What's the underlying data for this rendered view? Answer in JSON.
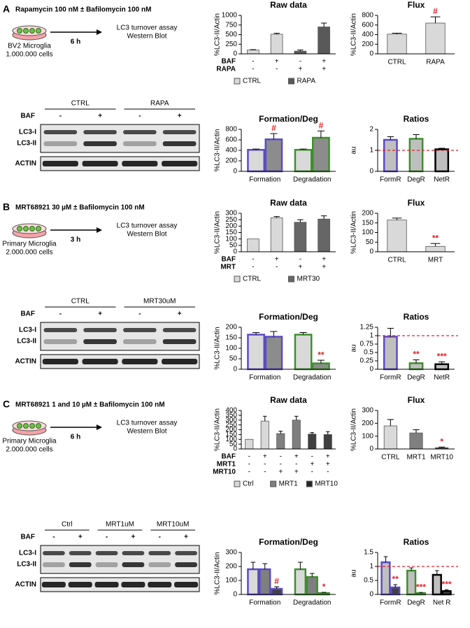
{
  "panels": [
    {
      "letter": "A",
      "title": "Rapamycin 100 nM ± Bafilomycin 100 nM",
      "cells": [
        "BV2 Microglia",
        "1.000.000 cells"
      ],
      "time": "6 h",
      "assay": [
        "LC3 turnover assay",
        "Western Blot"
      ],
      "blot_groups": [
        "CTRL",
        "RAPA"
      ],
      "blot_treatment": "BAF",
      "blot_signs": [
        "-",
        "+",
        "-",
        "+"
      ],
      "blot_rows": [
        "LC3-I",
        "LC3-II",
        "ACTIN"
      ]
    },
    {
      "letter": "B",
      "title": "MRT68921 30 µM ± Bafilomycin 100 nM",
      "cells": [
        "Primary Microglia",
        "2.000.000 cells"
      ],
      "time": "3 h",
      "assay": [
        "LC3 turnover assay",
        "Western Blot"
      ],
      "blot_groups": [
        "CTRL",
        "MRT30uM"
      ],
      "blot_treatment": "BAF",
      "blot_signs": [
        "-",
        "+",
        "-",
        "+"
      ],
      "blot_rows": [
        "LC3-I",
        "LC3-II",
        "ACTIN"
      ]
    },
    {
      "letter": "C",
      "title": "MRT68921 1 and 10 µM  ± Bafilomycin 100 nM",
      "cells": [
        "Primary Microglia",
        "2.000.000 cells"
      ],
      "time": "6 h",
      "assay": [
        "LC3 turnover assay",
        "Western Blot"
      ],
      "blot_groups": [
        "Ctrl",
        "MRT1uM",
        "MRT10uM"
      ],
      "blot_treatment": "BAF",
      "blot_signs": [
        "-",
        "+",
        "-",
        "+",
        "-",
        "+"
      ],
      "blot_rows": [
        "LC3-I",
        "LC3-II",
        "ACTIN"
      ]
    }
  ],
  "chart_data": [
    {
      "type": "bar",
      "title": "Raw data",
      "ylabel": "%LC3-II/Actin",
      "ylim": [
        0,
        1000
      ],
      "yticks": [
        0,
        250,
        500,
        750,
        1000
      ],
      "values": [
        100,
        510,
        70,
        700
      ],
      "errors": [
        10,
        25,
        30,
        100
      ],
      "colors": [
        "#d9d9d9",
        "#d9d9d9",
        "#595959",
        "#595959"
      ],
      "rows": [
        {
          "label": "BAF",
          "signs": [
            "-",
            "+",
            "-",
            "+"
          ]
        },
        {
          "label": "RAPA",
          "signs": [
            "-",
            "-",
            "+",
            "+"
          ]
        }
      ],
      "legend": [
        {
          "name": "CTRL",
          "color": "#d9d9d9"
        },
        {
          "name": "RAPA",
          "color": "#595959"
        }
      ]
    },
    {
      "type": "bar",
      "title": "Flux",
      "ylabel": "%LC3-II/Actin",
      "ylim": [
        0,
        800
      ],
      "yticks": [
        0,
        200,
        400,
        600,
        800
      ],
      "categories": [
        "CTRL",
        "RAPA"
      ],
      "values": [
        410,
        640
      ],
      "errors": [
        20,
        130
      ],
      "colors": [
        "#d9d9d9",
        "#d9d9d9"
      ],
      "marks": [
        null,
        "#"
      ]
    },
    {
      "type": "grouped_bar",
      "title": "Formation/Deg",
      "ylabel": "%LC3-II/Actin",
      "ylim": [
        0,
        800
      ],
      "yticks": [
        0,
        200,
        400,
        600,
        800
      ],
      "categories": [
        "Formation",
        "Degradation"
      ],
      "edgecolors": [
        "#5b4bc4",
        "#3f8f2f"
      ],
      "series": [
        {
          "color": "#d9d9d9",
          "values": [
            410,
            410
          ],
          "errors": [
            15,
            15
          ]
        },
        {
          "color": "#8c8c8c",
          "values": [
            610,
            640
          ],
          "errors": [
            110,
            130
          ],
          "marks": [
            "#",
            "#"
          ]
        }
      ]
    },
    {
      "type": "bar",
      "title": "Ratios",
      "ylabel": "au",
      "ylim": [
        0,
        2
      ],
      "yticks": [
        0,
        1,
        2
      ],
      "categories": [
        "FormR",
        "DegR",
        "NetR"
      ],
      "values": [
        1.5,
        1.55,
        1.05
      ],
      "errors": [
        0.15,
        0.2,
        0.05
      ],
      "colors": [
        "#bfbfbf",
        "#bfbfbf",
        "#bfbfbf"
      ],
      "edgecolors": [
        "#5b4bc4",
        "#3f8f2f",
        "#000000"
      ],
      "refline": 1
    },
    {
      "type": "bar",
      "title": "Raw data",
      "ylabel": "%LC3-II/Actin",
      "ylim": [
        0,
        300
      ],
      "yticks": [
        0,
        50,
        100,
        150,
        200,
        250,
        300
      ],
      "values": [
        100,
        265,
        230,
        255
      ],
      "errors": [
        null,
        10,
        20,
        25
      ],
      "colors": [
        "#d9d9d9",
        "#d9d9d9",
        "#666666",
        "#666666"
      ],
      "rows": [
        {
          "label": "BAF",
          "signs": [
            "-",
            "+",
            "-",
            "+"
          ]
        },
        {
          "label": "MRT",
          "signs": [
            "-",
            "-",
            "+",
            "+"
          ]
        }
      ],
      "legend": [
        {
          "name": "CTRL",
          "color": "#d9d9d9"
        },
        {
          "name": "MRT30",
          "color": "#666666"
        }
      ]
    },
    {
      "type": "bar",
      "title": "Flux",
      "ylabel": "%LC3-II/Actin",
      "ylim": [
        0,
        200
      ],
      "yticks": [
        0,
        50,
        100,
        150,
        200
      ],
      "categories": [
        "CTRL",
        "MRT"
      ],
      "values": [
        165,
        28
      ],
      "errors": [
        10,
        15
      ],
      "colors": [
        "#d9d9d9",
        "#d9d9d9"
      ],
      "marks": [
        null,
        "**"
      ]
    },
    {
      "type": "grouped_bar",
      "title": "Formation/Deg",
      "ylabel": "%LC3-II/Actin",
      "ylim": [
        0,
        200
      ],
      "yticks": [
        0,
        50,
        100,
        150,
        200
      ],
      "categories": [
        "Formation",
        "Degradation"
      ],
      "edgecolors": [
        "#5b4bc4",
        "#3f8f2f"
      ],
      "series": [
        {
          "color": "#d9d9d9",
          "values": [
            165,
            165
          ],
          "errors": [
            10,
            10
          ]
        },
        {
          "color": "#8c8c8c",
          "values": [
            155,
            28
          ],
          "errors": [
            25,
            15
          ],
          "marks": [
            null,
            "**"
          ]
        }
      ]
    },
    {
      "type": "bar",
      "title": "Ratios",
      "ylabel": "au",
      "ylim": [
        0,
        1.25
      ],
      "yticks": [
        0,
        0.25,
        0.5,
        0.75,
        1,
        1.25
      ],
      "categories": [
        "FormR",
        "DegR",
        "NetR"
      ],
      "values": [
        0.97,
        0.18,
        0.15
      ],
      "errors": [
        0.25,
        0.1,
        0.07
      ],
      "colors": [
        "#bfbfbf",
        "#bfbfbf",
        "#bfbfbf"
      ],
      "edgecolors": [
        "#5b4bc4",
        "#3f8f2f",
        "#000000"
      ],
      "marks": [
        null,
        "**",
        "***"
      ],
      "refline": 1
    },
    {
      "type": "bar",
      "title": "Raw data",
      "ylabel": "%LC3-II/Actin",
      "ylim": [
        0,
        400
      ],
      "yticks": [
        0,
        50,
        100,
        150,
        200,
        250,
        300,
        350,
        400
      ],
      "values": [
        100,
        290,
        160,
        300,
        155,
        150
      ],
      "errors": [
        null,
        50,
        25,
        40,
        15,
        30
      ],
      "colors": [
        "#d9d9d9",
        "#d9d9d9",
        "#7f7f7f",
        "#7f7f7f",
        "#404040",
        "#404040"
      ],
      "rows": [
        {
          "label": "BAF",
          "signs": [
            "-",
            "+",
            "-",
            "+",
            "-",
            "+"
          ]
        },
        {
          "label": "MRT1",
          "signs": [
            "-",
            "-",
            "-",
            "-",
            "+",
            "+"
          ]
        },
        {
          "label": "MRT10",
          "signs": [
            "-",
            "-",
            "+",
            "+",
            "-",
            "-"
          ]
        }
      ],
      "legend": [
        {
          "name": "Ctrl",
          "color": "#d9d9d9"
        },
        {
          "name": "MRT1",
          "color": "#7f7f7f"
        },
        {
          "name": "MRT10",
          "color": "#262626"
        }
      ]
    },
    {
      "type": "bar",
      "title": "Flux",
      "ylabel": "%LC3-II/Actin",
      "ylim": [
        0,
        300
      ],
      "yticks": [
        0,
        100,
        200,
        300
      ],
      "categories": [
        "CTRL",
        "MRT1",
        "MRT10"
      ],
      "values": [
        180,
        125,
        10
      ],
      "errors": [
        50,
        25,
        5
      ],
      "colors": [
        "#d9d9d9",
        "#7f7f7f",
        "#404040"
      ],
      "marks": [
        null,
        null,
        "*"
      ]
    },
    {
      "type": "grouped_bar",
      "title": "Formation/Deg",
      "ylabel": "%LC3-II/Actin",
      "ylim": [
        0,
        300
      ],
      "yticks": [
        0,
        100,
        200,
        300
      ],
      "categories": [
        "Formation",
        "Degradation"
      ],
      "edgecolors": [
        "#5b4bc4",
        "#3f8f2f"
      ],
      "series": [
        {
          "color": "#d9d9d9",
          "values": [
            180,
            180
          ],
          "errors": [
            50,
            50
          ]
        },
        {
          "color": "#7f7f7f",
          "values": [
            180,
            125
          ],
          "errors": [
            40,
            25
          ]
        },
        {
          "color": "#404040",
          "values": [
            40,
            10
          ],
          "errors": [
            15,
            5
          ],
          "marks": [
            "#",
            "*"
          ]
        }
      ]
    },
    {
      "type": "grouped_bar",
      "title": "Ratios",
      "ylabel": "au",
      "ylim": [
        0,
        1.5
      ],
      "yticks": [
        0,
        0.5,
        1,
        1.5
      ],
      "categories": [
        "FormR",
        "DegR",
        "Net R"
      ],
      "edgecolors": [
        "#5b4bc4",
        "#3f8f2f",
        "#000000"
      ],
      "refline": 1,
      "series": [
        {
          "color": "#bfbfbf",
          "values": [
            1.15,
            0.85,
            0.7
          ],
          "errors": [
            0.2,
            0.1,
            0.15
          ]
        },
        {
          "color": "#404040",
          "values": [
            0.25,
            0.05,
            0.12
          ],
          "errors": [
            0.1,
            0.02,
            0.05
          ],
          "marks": [
            "**",
            "***",
            "***"
          ]
        }
      ]
    }
  ]
}
